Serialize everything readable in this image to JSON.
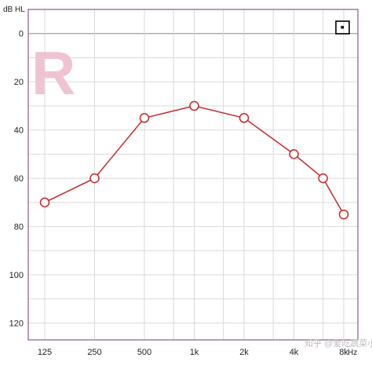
{
  "chart_data": {
    "type": "line",
    "ylabel": "dB HL",
    "xunit": "Hz",
    "ear_label": "R",
    "categories": [
      "125",
      "250",
      "500",
      "1k",
      "2k",
      "4k",
      "8k"
    ],
    "x_hz": [
      125,
      250,
      500,
      750,
      1000,
      1500,
      2000,
      3000,
      4000,
      6000,
      8000
    ],
    "series": [
      {
        "x": [
          125,
          250,
          500,
          1000,
          2000,
          4000,
          6000,
          8000
        ],
        "values": [
          70,
          60,
          35,
          30,
          35,
          50,
          60,
          75
        ],
        "color": "#c62828",
        "marker": "circle"
      }
    ],
    "yticks": [
      0,
      20,
      40,
      60,
      80,
      100,
      120
    ],
    "ylim": [
      -10,
      127
    ],
    "y_inverted": true,
    "grid": true,
    "legend_icon": "masking-box-icon",
    "watermark": "知乎 @爱吃蔬菜小孩"
  }
}
